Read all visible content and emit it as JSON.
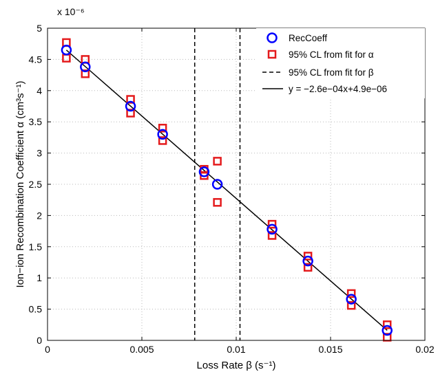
{
  "chart_data": {
    "type": "scatter",
    "title": "",
    "xlabel": "Loss Rate β (s⁻¹)",
    "ylabel": "Ion−ion Recombination Coefficient α (cm³s⁻¹)",
    "y_exponent_label": "x 10⁻⁶",
    "xlim": [
      0,
      0.02
    ],
    "ylim": [
      0,
      5
    ],
    "x_ticks": [
      0,
      0.005,
      0.01,
      0.015,
      0.02
    ],
    "x_tick_labels": [
      "0",
      "0.005",
      "0.01",
      "0.015",
      "0.02"
    ],
    "y_ticks": [
      0,
      0.5,
      1,
      1.5,
      2,
      2.5,
      3,
      3.5,
      4,
      4.5,
      5
    ],
    "y_tick_labels": [
      "0",
      "0.5",
      "1",
      "1.5",
      "2",
      "2.5",
      "3",
      "3.5",
      "4",
      "4.5",
      "5"
    ],
    "grid": true,
    "legend_position": "top-right",
    "series": [
      {
        "name": "RecCoeff",
        "marker": "circle",
        "color": "#0000ff",
        "x": [
          0.001,
          0.002,
          0.0044,
          0.0061,
          0.0083,
          0.009,
          0.0119,
          0.0138,
          0.0161,
          0.018
        ],
        "y": [
          4.65,
          4.38,
          3.75,
          3.3,
          2.7,
          2.5,
          1.78,
          1.27,
          0.66,
          0.16
        ]
      },
      {
        "name": "95% CL from fit for α",
        "marker": "square",
        "color": "#e41a1c",
        "x": [
          0.001,
          0.001,
          0.002,
          0.002,
          0.0044,
          0.0044,
          0.0061,
          0.0061,
          0.0083,
          0.0083,
          0.009,
          0.009,
          0.0119,
          0.0119,
          0.0138,
          0.0138,
          0.0161,
          0.0161,
          0.018,
          0.018
        ],
        "y": [
          4.77,
          4.52,
          4.5,
          4.27,
          3.86,
          3.64,
          3.4,
          3.2,
          2.74,
          2.64,
          2.87,
          2.21,
          1.86,
          1.68,
          1.35,
          1.17,
          0.75,
          0.56,
          0.25,
          0.05
        ]
      },
      {
        "name": "95% CL from fit for β",
        "style": "dashed-vertical",
        "color": "#000000",
        "x_values": [
          0.0078,
          0.0102
        ]
      },
      {
        "name": "y = −2.6e−04x+4.9e−06",
        "style": "line",
        "color": "#000000",
        "x": [
          0.001,
          0.018
        ],
        "y": [
          4.65,
          0.16
        ]
      }
    ]
  }
}
